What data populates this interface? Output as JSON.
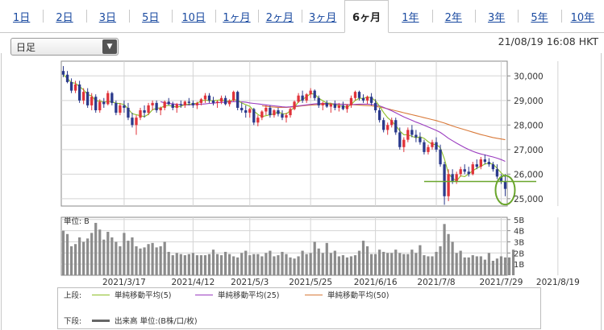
{
  "tabs": [
    {
      "label": "1日",
      "active": false
    },
    {
      "label": "2日",
      "active": false
    },
    {
      "label": "3日",
      "active": false
    },
    {
      "label": "5日",
      "active": false
    },
    {
      "label": "10日",
      "active": false
    },
    {
      "label": "1ヶ月",
      "active": false
    },
    {
      "label": "2ヶ月",
      "active": false
    },
    {
      "label": "3ヶ月",
      "active": false
    },
    {
      "label": "6ヶ月",
      "active": true
    },
    {
      "label": "1年",
      "active": false
    },
    {
      "label": "2年",
      "active": false
    },
    {
      "label": "3年",
      "active": false
    },
    {
      "label": "5年",
      "active": false
    },
    {
      "label": "10年",
      "active": false
    }
  ],
  "period_select": {
    "value": "日足"
  },
  "timestamp": "21/08/19 16:08 HKT",
  "volume_unit_label": "単位: B",
  "legend": {
    "upper_label": "上段:",
    "lower_label": "下段:",
    "ma5": "単純移動平均(5)",
    "ma25": "単純移動平均(25)",
    "ma50": "単純移動平均(50)",
    "volume": "出来高 単位:(B株/口/枚)"
  },
  "colors": {
    "up": "#e0333a",
    "down": "#2b3a8c",
    "ma5": "#8cbf26",
    "ma25": "#9b3dc0",
    "ma50": "#d97a3a",
    "volume": "#8c8c8c",
    "support": "#6aa62c",
    "highlight": "#6aa62c"
  },
  "chart_data": [
    {
      "type": "candlestick",
      "ylim": [
        24700,
        30600
      ],
      "y_ticks": [
        25000,
        26000,
        27000,
        28000,
        29000,
        30000
      ],
      "y_tick_labels": [
        "25,000",
        "26,000",
        "27,000",
        "28,000",
        "29,000",
        "30,000"
      ],
      "x_tick_labels": [
        "2021/3/17",
        "2021/4/12",
        "2021/5/3",
        "2021/5/25",
        "2021/6/16",
        "2021/7/8",
        "2021/7/29",
        "2021/8/19"
      ],
      "x_tick_index": [
        15,
        32,
        46,
        61,
        77,
        92,
        108,
        122
      ],
      "support_line": 25700,
      "ohlc": [
        [
          30200,
          30400,
          29950,
          30050
        ],
        [
          30050,
          30200,
          29700,
          29750
        ],
        [
          29750,
          29900,
          29300,
          29400
        ],
        [
          29400,
          29800,
          29300,
          29650
        ],
        [
          29650,
          29800,
          28900,
          29000
        ],
        [
          29000,
          29500,
          28850,
          29350
        ],
        [
          29350,
          29500,
          28700,
          28800
        ],
        [
          28800,
          29300,
          28600,
          29150
        ],
        [
          29150,
          29250,
          28500,
          28600
        ],
        [
          28600,
          29050,
          28500,
          28950
        ],
        [
          28950,
          29100,
          28700,
          28850
        ],
        [
          28850,
          29400,
          28800,
          29300
        ],
        [
          29300,
          29350,
          28800,
          28900
        ],
        [
          28900,
          29000,
          28400,
          28500
        ],
        [
          28500,
          28900,
          28400,
          28800
        ],
        [
          28800,
          29000,
          28500,
          28700
        ],
        [
          28700,
          28900,
          28200,
          28300
        ],
        [
          28300,
          28500,
          27900,
          28000
        ],
        [
          28000,
          28400,
          27600,
          28300
        ],
        [
          28300,
          28700,
          28200,
          28600
        ],
        [
          28600,
          28800,
          28300,
          28500
        ],
        [
          28500,
          28900,
          28400,
          28800
        ],
        [
          28800,
          29000,
          28600,
          28900
        ],
        [
          28900,
          29000,
          28500,
          28600
        ],
        [
          28600,
          28750,
          28400,
          28700
        ],
        [
          28700,
          29000,
          28600,
          28950
        ],
        [
          28950,
          29100,
          28800,
          28850
        ],
        [
          28850,
          28950,
          28600,
          28700
        ],
        [
          28700,
          28900,
          28500,
          28850
        ],
        [
          28850,
          29000,
          28700,
          28800
        ],
        [
          28800,
          29000,
          28700,
          28950
        ],
        [
          28950,
          29100,
          28800,
          28900
        ],
        [
          28900,
          29000,
          28700,
          28800
        ],
        [
          28800,
          28950,
          28650,
          28900
        ],
        [
          28900,
          29100,
          28800,
          29050
        ],
        [
          29050,
          29300,
          28900,
          29200
        ],
        [
          29200,
          29300,
          28900,
          29000
        ],
        [
          29000,
          29150,
          28800,
          28900
        ],
        [
          28900,
          29000,
          28700,
          28950
        ],
        [
          28950,
          29200,
          28850,
          29100
        ],
        [
          29100,
          29200,
          28800,
          28850
        ],
        [
          28850,
          29050,
          28750,
          29000
        ],
        [
          29000,
          29400,
          28950,
          29350
        ],
        [
          29350,
          29400,
          28600,
          28700
        ],
        [
          28700,
          28900,
          28500,
          28600
        ],
        [
          28600,
          28800,
          28300,
          28500
        ],
        [
          28500,
          28700,
          28300,
          28650
        ],
        [
          28650,
          28700,
          28000,
          28100
        ],
        [
          28100,
          28400,
          27950,
          28300
        ],
        [
          28300,
          28600,
          28200,
          28550
        ],
        [
          28550,
          28800,
          28400,
          28700
        ],
        [
          28700,
          28800,
          28300,
          28400
        ],
        [
          28400,
          28650,
          28300,
          28600
        ],
        [
          28600,
          28700,
          28350,
          28450
        ],
        [
          28450,
          28600,
          28200,
          28300
        ],
        [
          28300,
          28500,
          28100,
          28400
        ],
        [
          28400,
          28700,
          28300,
          28650
        ],
        [
          28650,
          29000,
          28600,
          28950
        ],
        [
          28950,
          29300,
          28900,
          29200
        ],
        [
          29200,
          29400,
          28900,
          29000
        ],
        [
          29000,
          29300,
          28900,
          29250
        ],
        [
          29250,
          29500,
          29100,
          29400
        ],
        [
          29400,
          29450,
          29000,
          29100
        ],
        [
          29100,
          29200,
          28700,
          28800
        ],
        [
          28800,
          28950,
          28600,
          28900
        ],
        [
          28900,
          29000,
          28700,
          28750
        ],
        [
          28750,
          28900,
          28500,
          28850
        ],
        [
          28850,
          29000,
          28600,
          28700
        ],
        [
          28700,
          28900,
          28550,
          28800
        ],
        [
          28800,
          28950,
          28600,
          28650
        ],
        [
          28650,
          28850,
          28500,
          28800
        ],
        [
          28800,
          29200,
          28700,
          29100
        ],
        [
          29100,
          29400,
          29000,
          29350
        ],
        [
          29350,
          29400,
          29000,
          29100
        ],
        [
          29100,
          29250,
          28900,
          29000
        ],
        [
          29000,
          29200,
          28850,
          29150
        ],
        [
          29150,
          29300,
          28800,
          28900
        ],
        [
          28900,
          29050,
          28500,
          28600
        ],
        [
          28600,
          28700,
          28100,
          28200
        ],
        [
          28200,
          28300,
          27700,
          27800
        ],
        [
          27800,
          28100,
          27600,
          28000
        ],
        [
          28000,
          28300,
          27900,
          28200
        ],
        [
          28200,
          28300,
          27600,
          27700
        ],
        [
          27700,
          27900,
          27000,
          27100
        ],
        [
          27100,
          27500,
          26900,
          27400
        ],
        [
          27400,
          27900,
          27300,
          27800
        ],
        [
          27800,
          28000,
          27500,
          27600
        ],
        [
          27600,
          27800,
          27300,
          27500
        ],
        [
          27500,
          27700,
          27200,
          27300
        ],
        [
          27300,
          27400,
          26800,
          26900
        ],
        [
          26900,
          27200,
          26800,
          27100
        ],
        [
          27100,
          27400,
          27000,
          27300
        ],
        [
          27300,
          27500,
          26900,
          27000
        ],
        [
          27000,
          27200,
          26300,
          26400
        ],
        [
          26400,
          26500,
          24750,
          25100
        ],
        [
          25100,
          26200,
          24900,
          26000
        ],
        [
          26000,
          26200,
          25600,
          25700
        ],
        [
          25700,
          26100,
          25600,
          26000
        ],
        [
          26000,
          26300,
          25900,
          26200
        ],
        [
          26200,
          26400,
          26000,
          26100
        ],
        [
          26100,
          26300,
          25900,
          26000
        ],
        [
          26000,
          26500,
          25950,
          26400
        ],
        [
          26400,
          26600,
          26200,
          26300
        ],
        [
          26300,
          26700,
          26200,
          26600
        ],
        [
          26600,
          26800,
          26400,
          26500
        ],
        [
          26500,
          26650,
          26300,
          26400
        ],
        [
          26400,
          26500,
          26100,
          26200
        ],
        [
          26200,
          26400,
          25800,
          25900
        ],
        [
          25900,
          26000,
          25600,
          25700
        ],
        [
          25700,
          26000,
          25100,
          25400
        ]
      ],
      "ma5": [
        30050,
        29900,
        29730,
        29700,
        29570,
        29430,
        29240,
        29190,
        28980,
        28980,
        28930,
        28960,
        28940,
        28890,
        28870,
        28840,
        28660,
        28460,
        28420,
        28380,
        28340,
        28440,
        28620,
        28680,
        28700,
        28780,
        28800,
        28760,
        28730,
        28760,
        28830,
        28850,
        28860,
        28890,
        28980,
        29020,
        28990,
        28990,
        29010,
        29030,
        28980,
        28960,
        29040,
        29000,
        28900,
        28830,
        28760,
        28570,
        28430,
        28340,
        28380,
        28420,
        28450,
        28540,
        28460,
        28450,
        28580,
        28720,
        28950,
        29040,
        29150,
        29280,
        29260,
        29090,
        28990,
        28890,
        28890,
        28800,
        28800,
        28760,
        28720,
        28830,
        29000,
        29090,
        29080,
        29140,
        29110,
        28990,
        28770,
        28510,
        28300,
        28160,
        27980,
        27760,
        27600,
        27600,
        27540,
        27480,
        27520,
        27460,
        27320,
        27210,
        27210,
        27080,
        26620,
        26020,
        25840,
        25720,
        25930,
        25900,
        26010,
        26140,
        26240,
        26320,
        26410,
        26450,
        26400,
        26240,
        26050,
        25890
      ],
      "ma25": [
        null,
        null,
        null,
        null,
        null,
        null,
        null,
        null,
        null,
        null,
        null,
        null,
        null,
        null,
        null,
        null,
        null,
        null,
        null,
        null,
        null,
        null,
        null,
        null,
        28950,
        28900,
        28880,
        28860,
        28840,
        28830,
        28820,
        28820,
        28830,
        28840,
        28850,
        28860,
        28880,
        28890,
        28910,
        28920,
        28930,
        28940,
        28950,
        28950,
        28940,
        28930,
        28900,
        28880,
        28860,
        28840,
        28820,
        28800,
        28780,
        28760,
        28740,
        28730,
        28740,
        28760,
        28780,
        28800,
        28820,
        28840,
        28860,
        28870,
        28880,
        28880,
        28870,
        28860,
        28850,
        28840,
        28830,
        28830,
        28840,
        28850,
        28850,
        28850,
        28840,
        28820,
        28780,
        28720,
        28650,
        28580,
        28500,
        28410,
        28330,
        28260,
        28190,
        28120,
        28060,
        27990,
        27920,
        27850,
        27780,
        27700,
        27580,
        27460,
        27360,
        27260,
        27170,
        27080,
        27000,
        26930,
        26870,
        26820,
        26780,
        26740,
        26700,
        26650,
        26590,
        26520
      ],
      "ma50": [
        null,
        null,
        null,
        null,
        null,
        null,
        null,
        null,
        null,
        null,
        null,
        null,
        null,
        null,
        null,
        null,
        null,
        null,
        null,
        null,
        null,
        null,
        null,
        null,
        null,
        null,
        null,
        null,
        null,
        null,
        null,
        null,
        null,
        null,
        null,
        null,
        null,
        null,
        null,
        null,
        null,
        null,
        null,
        null,
        null,
        null,
        null,
        null,
        null,
        28780,
        28760,
        28740,
        28730,
        28720,
        28720,
        28720,
        28730,
        28740,
        28760,
        28780,
        28800,
        28810,
        28820,
        28830,
        28840,
        28850,
        28850,
        28850,
        28850,
        28850,
        28840,
        28830,
        28820,
        28810,
        28800,
        28790,
        28780,
        28760,
        28730,
        28700,
        28660,
        28620,
        28580,
        28540,
        28500,
        28460,
        28420,
        28380,
        28340,
        28300,
        28260,
        28220,
        28180,
        28130,
        28080,
        28020,
        27960,
        27910,
        27860,
        27810,
        27760,
        27710,
        27660,
        27610,
        27570,
        27530,
        27490,
        27460,
        27430,
        27400
      ]
    },
    {
      "type": "bar",
      "title": "volume",
      "ylim": [
        0,
        5.2
      ],
      "y_ticks": [
        1,
        2,
        3,
        4,
        5
      ],
      "y_tick_labels": [
        "1B",
        "2B",
        "3B",
        "4B",
        "5B"
      ],
      "values": [
        4.0,
        3.7,
        2.6,
        2.8,
        3.4,
        3.0,
        3.3,
        3.8,
        4.7,
        4.1,
        3.2,
        3.9,
        3.4,
        3.0,
        2.6,
        3.8,
        3.1,
        3.4,
        2.6,
        2.4,
        2.5,
        2.8,
        2.9,
        2.5,
        2.6,
        3.0,
        2.1,
        1.8,
        2.0,
        1.9,
        1.8,
        1.9,
        2.0,
        1.8,
        1.8,
        1.8,
        1.9,
        2.3,
        1.9,
        1.8,
        2.1,
        1.9,
        1.7,
        1.6,
        2.0,
        2.2,
        1.8,
        1.9,
        1.9,
        1.7,
        2.0,
        2.2,
        1.7,
        1.8,
        2.1,
        1.9,
        1.6,
        1.5,
        1.7,
        2.2,
        1.9,
        2.0,
        3.0,
        2.4,
        2.0,
        2.9,
        2.0,
        2.2,
        1.7,
        1.8,
        1.6,
        1.7,
        1.8,
        2.2,
        3.1,
        2.6,
        1.9,
        1.9,
        2.3,
        2.1,
        2.0,
        2.0,
        2.3,
        2.0,
        1.9,
        1.9,
        2.3,
        2.0,
        2.7,
        1.8,
        1.7,
        1.7,
        2.1,
        2.6,
        4.6,
        3.7,
        3.0,
        2.0,
        2.2,
        1.6,
        1.6,
        1.8,
        1.7,
        1.7,
        1.4,
        2.0,
        1.3,
        1.5,
        1.7,
        1.6,
        1.6,
        2.3
      ]
    }
  ]
}
